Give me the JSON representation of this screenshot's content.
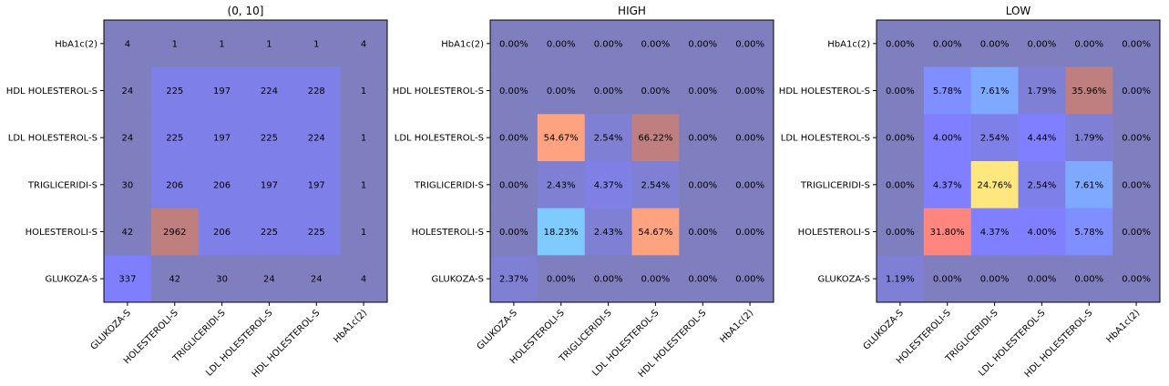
{
  "chart_data": [
    {
      "type": "heatmap",
      "title": "(0, 10]",
      "x_labels": [
        "GLUKOZA-S",
        "HOLESTEROLI-S",
        "TRIGLICERIDI-S",
        "LDL HOLESTEROL-S",
        "HDL HOLESTEROL-S",
        "HbA1c(2)"
      ],
      "y_labels": [
        "HbA1c(2)",
        "HDL HOLESTEROL-S",
        "LDL HOLESTEROL-S",
        "TRIGLICERIDI-S",
        "HOLESTEROLI-S",
        "GLUKOZA-S"
      ],
      "cell_labels": [
        [
          "4",
          "1",
          "1",
          "1",
          "1",
          "4"
        ],
        [
          "24",
          "225",
          "197",
          "224",
          "228",
          "1"
        ],
        [
          "24",
          "225",
          "197",
          "225",
          "224",
          "1"
        ],
        [
          "30",
          "206",
          "206",
          "197",
          "197",
          "1"
        ],
        [
          "42",
          "2962",
          "206",
          "225",
          "225",
          "1"
        ],
        [
          "337",
          "42",
          "30",
          "24",
          "24",
          "4"
        ]
      ],
      "cell_colors": [
        [
          "#7f7fbf",
          "#7f7fbf",
          "#7f7fbf",
          "#7f7fbf",
          "#7f7fbf",
          "#7f7fbf"
        ],
        [
          "#7f7fbf",
          "#7f7fe9",
          "#7f7fe9",
          "#7f7fe9",
          "#7f7fe9",
          "#7f7fbf"
        ],
        [
          "#7f7fbf",
          "#7f7fe9",
          "#7f7fe9",
          "#7f7fe9",
          "#7f7fe9",
          "#7f7fbf"
        ],
        [
          "#7f7fbf",
          "#7f7fe9",
          "#7f7fe9",
          "#7f7fe9",
          "#7f7fe9",
          "#7f7fbf"
        ],
        [
          "#7f7fbf",
          "#bf7f7f",
          "#7f7fe9",
          "#7f7fe9",
          "#7f7fe9",
          "#7f7fbf"
        ],
        [
          "#7f7ffe",
          "#7f7fbf",
          "#7f7fbf",
          "#7f7fbf",
          "#7f7fbf",
          "#7f7fbf"
        ]
      ]
    },
    {
      "type": "heatmap",
      "title": "HIGH",
      "x_labels": [
        "GLUKOZA-S",
        "HOLESTEROLI-S",
        "TRIGLICERIDI-S",
        "LDL HOLESTEROL-S",
        "HDL HOLESTEROL-S",
        "HbA1c(2)"
      ],
      "y_labels": [
        "HbA1c(2)",
        "HDL HOLESTEROL-S",
        "LDL HOLESTEROL-S",
        "TRIGLICERIDI-S",
        "HOLESTEROLI-S",
        "GLUKOZA-S"
      ],
      "cell_labels": [
        [
          "0.00%",
          "0.00%",
          "0.00%",
          "0.00%",
          "0.00%",
          "0.00%"
        ],
        [
          "0.00%",
          "0.00%",
          "0.00%",
          "0.00%",
          "0.00%",
          "0.00%"
        ],
        [
          "0.00%",
          "54.67%",
          "2.54%",
          "66.22%",
          "0.00%",
          "0.00%"
        ],
        [
          "0.00%",
          "2.43%",
          "4.37%",
          "2.54%",
          "0.00%",
          "0.00%"
        ],
        [
          "0.00%",
          "18.23%",
          "2.43%",
          "54.67%",
          "0.00%",
          "0.00%"
        ],
        [
          "2.37%",
          "0.00%",
          "0.00%",
          "0.00%",
          "0.00%",
          "0.00%"
        ]
      ],
      "cell_colors": [
        [
          "#7f7fbf",
          "#7f7fbf",
          "#7f7fbf",
          "#7f7fbf",
          "#7f7fbf",
          "#7f7fbf"
        ],
        [
          "#7f7fbf",
          "#7f7fbf",
          "#7f7fbf",
          "#7f7fbf",
          "#7f7fbf",
          "#7f7fbf"
        ],
        [
          "#7f7fbf",
          "#ffa27f",
          "#7f7fd3",
          "#bf7f7f",
          "#7f7fbf",
          "#7f7fbf"
        ],
        [
          "#7f7fbf",
          "#7f7fd3",
          "#7f7fe6",
          "#7f7fd3",
          "#7f7fbf",
          "#7f7fbf"
        ],
        [
          "#7f7fbf",
          "#7fcaff",
          "#7f7fd3",
          "#ffa27f",
          "#7f7fbf",
          "#7f7fbf"
        ],
        [
          "#7f7fd3",
          "#7f7fbf",
          "#7f7fbf",
          "#7f7fbf",
          "#7f7fbf",
          "#7f7fbf"
        ]
      ]
    },
    {
      "type": "heatmap",
      "title": "LOW",
      "x_labels": [
        "GLUKOZA-S",
        "HOLESTEROLI-S",
        "TRIGLICERIDI-S",
        "LDL HOLESTEROL-S",
        "HDL HOLESTEROL-S",
        "HbA1c(2)"
      ],
      "y_labels": [
        "HbA1c(2)",
        "HDL HOLESTEROL-S",
        "LDL HOLESTEROL-S",
        "TRIGLICERIDI-S",
        "HOLESTEROLI-S",
        "GLUKOZA-S"
      ],
      "cell_labels": [
        [
          "0.00%",
          "0.00%",
          "0.00%",
          "0.00%",
          "0.00%",
          "0.00%"
        ],
        [
          "0.00%",
          "5.78%",
          "7.61%",
          "1.79%",
          "35.96%",
          "0.00%"
        ],
        [
          "0.00%",
          "4.00%",
          "2.54%",
          "4.44%",
          "1.79%",
          "0.00%"
        ],
        [
          "0.00%",
          "4.37%",
          "24.76%",
          "2.54%",
          "7.61%",
          "0.00%"
        ],
        [
          "0.00%",
          "31.80%",
          "4.37%",
          "4.00%",
          "5.78%",
          "0.00%"
        ],
        [
          "1.19%",
          "0.00%",
          "0.00%",
          "0.00%",
          "0.00%",
          "0.00%"
        ]
      ],
      "cell_colors": [
        [
          "#7f7fbf",
          "#7f7fbf",
          "#7f7fbf",
          "#7f7fbf",
          "#7f7fbf",
          "#7f7fbf"
        ],
        [
          "#7f7fbf",
          "#7f8fff",
          "#7fa9ff",
          "#7f7fd6",
          "#bf7f7f",
          "#7f7fbf"
        ],
        [
          "#7f7fbf",
          "#7f7fff",
          "#7f7fe9",
          "#7f7fff",
          "#7f7fd6",
          "#7f7fbf"
        ],
        [
          "#7f7fbf",
          "#7f7fff",
          "#ffe77f",
          "#7f7fe9",
          "#7fa9ff",
          "#7f7fbf"
        ],
        [
          "#7f7fbf",
          "#ff857f",
          "#7f7fff",
          "#7f7fff",
          "#7f8fff",
          "#7f7fbf"
        ],
        [
          "#7f7fd6",
          "#7f7fbf",
          "#7f7fbf",
          "#7f7fbf",
          "#7f7fbf",
          "#7f7fbf"
        ]
      ]
    }
  ]
}
